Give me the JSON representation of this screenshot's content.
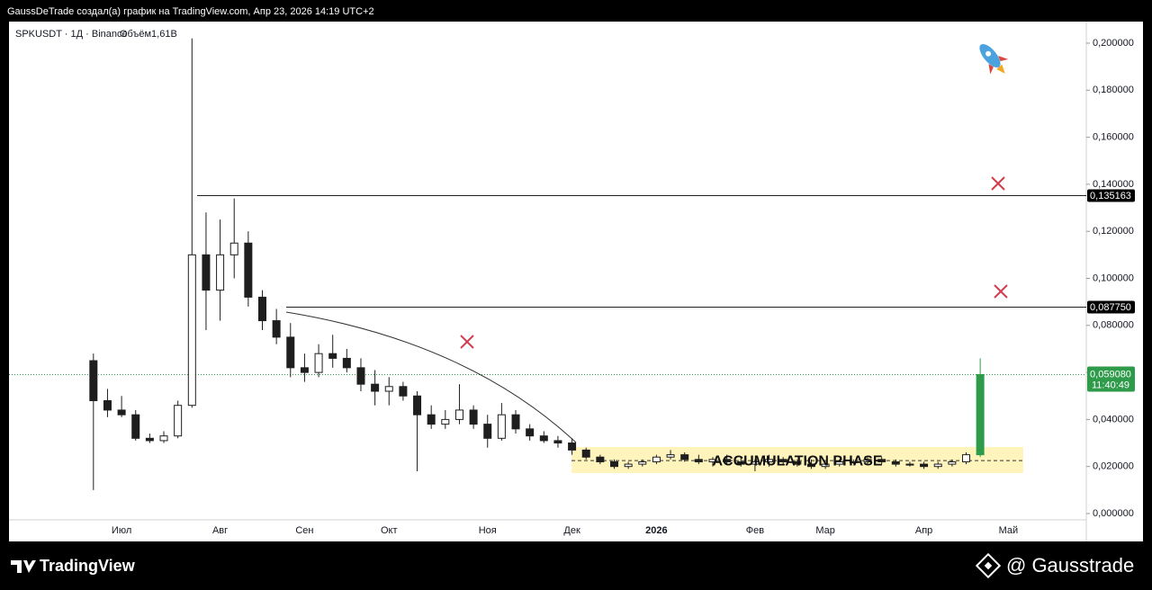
{
  "header": {
    "credit": "GaussDeTrade создал(а) график на TradingView.com, Апр 23, 2026 14:19 UTC+2"
  },
  "footer": {
    "brand": "TradingView",
    "author": "@ Gausstrade"
  },
  "chart_data": {
    "type": "candlestick",
    "title": "SPKUSDT · 1Д · Binance",
    "subtitle": "Объём1,61B",
    "categories": [
      null,
      null,
      "Июл",
      null,
      null,
      null,
      null,
      null,
      null,
      "Авг",
      null,
      null,
      null,
      null,
      null,
      "Сен",
      null,
      null,
      null,
      null,
      null,
      "Окт",
      null,
      null,
      null,
      null,
      null,
      null,
      "Ноя",
      null,
      null,
      null,
      null,
      null,
      "Дек",
      null,
      null,
      null,
      null,
      null,
      "2026",
      null,
      null,
      null,
      null,
      null,
      null,
      "Фев",
      null,
      null,
      null,
      null,
      "Мар",
      null,
      null,
      null,
      null,
      null,
      null,
      "Апр",
      null,
      null,
      null,
      null,
      null,
      "Май",
      null
    ],
    "values": [
      [
        0.065,
        0.068,
        0.01,
        0.048
      ],
      [
        0.048,
        0.053,
        0.041,
        0.044
      ],
      [
        0.044,
        0.05,
        0.041,
        0.042
      ],
      [
        0.042,
        0.044,
        0.031,
        0.032
      ],
      [
        0.032,
        0.034,
        0.03,
        0.031
      ],
      [
        0.031,
        0.035,
        0.03,
        0.033
      ],
      [
        0.033,
        0.048,
        0.032,
        0.046
      ],
      [
        0.046,
        0.202,
        0.045,
        0.11
      ],
      [
        0.11,
        0.128,
        0.078,
        0.095
      ],
      [
        0.095,
        0.125,
        0.082,
        0.11
      ],
      [
        0.11,
        0.134,
        0.1,
        0.115
      ],
      [
        0.115,
        0.12,
        0.088,
        0.092
      ],
      [
        0.092,
        0.095,
        0.078,
        0.082
      ],
      [
        0.082,
        0.087,
        0.072,
        0.075
      ],
      [
        0.075,
        0.081,
        0.058,
        0.062
      ],
      [
        0.062,
        0.068,
        0.056,
        0.06
      ],
      [
        0.06,
        0.072,
        0.058,
        0.068
      ],
      [
        0.068,
        0.076,
        0.062,
        0.066
      ],
      [
        0.066,
        0.07,
        0.06,
        0.062
      ],
      [
        0.062,
        0.066,
        0.052,
        0.055
      ],
      [
        0.055,
        0.061,
        0.046,
        0.052
      ],
      [
        0.052,
        0.058,
        0.046,
        0.054
      ],
      [
        0.054,
        0.056,
        0.048,
        0.05
      ],
      [
        0.05,
        0.052,
        0.018,
        0.042
      ],
      [
        0.042,
        0.046,
        0.036,
        0.038
      ],
      [
        0.038,
        0.044,
        0.036,
        0.04
      ],
      [
        0.04,
        0.055,
        0.038,
        0.044
      ],
      [
        0.044,
        0.046,
        0.036,
        0.038
      ],
      [
        0.038,
        0.042,
        0.028,
        0.032
      ],
      [
        0.032,
        0.047,
        0.031,
        0.042
      ],
      [
        0.042,
        0.044,
        0.034,
        0.036
      ],
      [
        0.036,
        0.038,
        0.031,
        0.033
      ],
      [
        0.033,
        0.035,
        0.03,
        0.031
      ],
      [
        0.031,
        0.033,
        0.028,
        0.03
      ],
      [
        0.03,
        0.032,
        0.025,
        0.027
      ],
      [
        0.027,
        0.028,
        0.023,
        0.024
      ],
      [
        0.024,
        0.025,
        0.021,
        0.022
      ],
      [
        0.022,
        0.023,
        0.019,
        0.02
      ],
      [
        0.02,
        0.022,
        0.019,
        0.021
      ],
      [
        0.021,
        0.023,
        0.02,
        0.022
      ],
      [
        0.022,
        0.025,
        0.021,
        0.024
      ],
      [
        0.024,
        0.027,
        0.023,
        0.025
      ],
      [
        0.025,
        0.026,
        0.022,
        0.023
      ],
      [
        0.023,
        0.025,
        0.021,
        0.022
      ],
      [
        0.022,
        0.024,
        0.02,
        0.023
      ],
      [
        0.023,
        0.025,
        0.021,
        0.022
      ],
      [
        0.022,
        0.024,
        0.02,
        0.021
      ],
      [
        0.021,
        0.023,
        0.018,
        0.022
      ],
      [
        0.022,
        0.025,
        0.02,
        0.023
      ],
      [
        0.023,
        0.024,
        0.021,
        0.022
      ],
      [
        0.022,
        0.023,
        0.02,
        0.021
      ],
      [
        0.021,
        0.023,
        0.019,
        0.02
      ],
      [
        0.02,
        0.022,
        0.019,
        0.021
      ],
      [
        0.021,
        0.023,
        0.02,
        0.022
      ],
      [
        0.022,
        0.023,
        0.021,
        0.022
      ],
      [
        0.022,
        0.024,
        0.021,
        0.023
      ],
      [
        0.023,
        0.024,
        0.021,
        0.022
      ],
      [
        0.022,
        0.023,
        0.02,
        0.021
      ],
      [
        0.021,
        0.022,
        0.02,
        0.021
      ],
      [
        0.021,
        0.022,
        0.019,
        0.02
      ],
      [
        0.02,
        0.022,
        0.019,
        0.021
      ],
      [
        0.021,
        0.023,
        0.02,
        0.022
      ],
      [
        0.022,
        0.026,
        0.021,
        0.025
      ],
      [
        0.025,
        0.066,
        0.024,
        0.05908
      ],
      null,
      null,
      null
    ],
    "up_color": "#ffffff",
    "down_color": "#1e1e1e",
    "last_color": "#2e9b4a",
    "ylim": [
      -0.00268,
      0.20918
    ],
    "yticks": [
      {
        "value": 0,
        "label": "0,000000"
      },
      {
        "value": 0.02,
        "label": "0,020000"
      },
      {
        "value": 0.04,
        "label": "0,040000"
      },
      {
        "value": 0.06,
        "label": "0,060000"
      },
      {
        "value": 0.08,
        "label": "0,080000"
      },
      {
        "value": 0.1,
        "label": "0,100000"
      },
      {
        "value": 0.12,
        "label": "0,120000"
      },
      {
        "value": 0.14,
        "label": "0,140000"
      },
      {
        "value": 0.16,
        "label": "0,160000"
      },
      {
        "value": 0.18,
        "label": "0,180000"
      },
      {
        "value": 0.2,
        "label": "0,200000"
      }
    ],
    "hlines": [
      {
        "value": 0.135163,
        "label": "0,135163"
      },
      {
        "value": 0.08775,
        "label": "0,087750"
      }
    ],
    "last_price": {
      "value": 0.05908,
      "label": "0,059080",
      "countdown": "11:40:49"
    },
    "zone": {
      "text": "ACCUMULATION PHASE",
      "low": 0.0172,
      "high": 0.0283,
      "mid": 0.0225
    }
  }
}
